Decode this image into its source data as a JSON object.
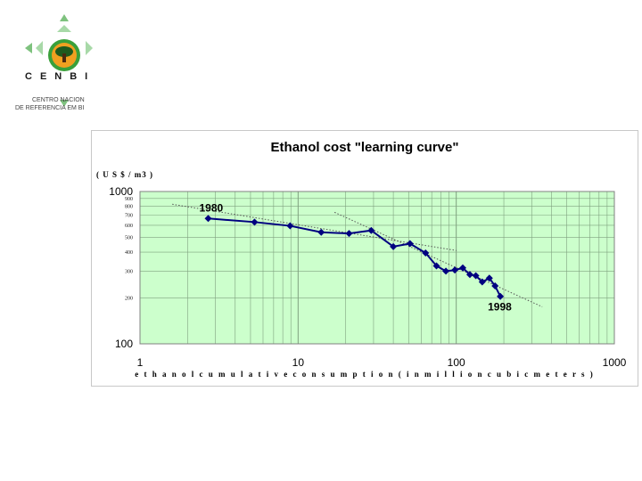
{
  "logo": {
    "letters": "CENBI",
    "line1": "CENTRO NACION",
    "line2": "DE REFERÊNCIA EM BI"
  },
  "colors": {
    "plot_bg": "#ccffcc",
    "grid": "#7fa07f",
    "series": "#000080",
    "trend": "#555555"
  },
  "chart_data": {
    "type": "line",
    "title": "Ethanol cost \"learning curve\"",
    "ylabel": "( U S $ / m3 )",
    "xlabel": "e t h a n o l   c u m u l a t i v e   c o n s u m p t i o n   ( i n   m i l l i o n   c u b i c   m e t e r s )",
    "x_scale": "log",
    "y_scale": "log",
    "xlim": [
      1,
      1000
    ],
    "ylim": [
      100,
      1000
    ],
    "x_ticks": [
      "1",
      "10",
      "100",
      "1000"
    ],
    "y_ticks_major": [
      "100",
      "1000"
    ],
    "y_ticks_minor": [
      "200",
      "300",
      "400",
      "500",
      "600",
      "700",
      "800",
      "900"
    ],
    "grid": true,
    "series": [
      {
        "points": [
          [
            2.7,
            665
          ],
          [
            5.3,
            630
          ],
          [
            8.9,
            595
          ],
          [
            14,
            540
          ],
          [
            21,
            530
          ],
          [
            29,
            555
          ],
          [
            40,
            435
          ],
          [
            51,
            455
          ],
          [
            64,
            395
          ],
          [
            75,
            325
          ],
          [
            86,
            300
          ],
          [
            98,
            305
          ],
          [
            110,
            315
          ],
          [
            122,
            285
          ],
          [
            133,
            280
          ],
          [
            146,
            255
          ],
          [
            162,
            270
          ],
          [
            176,
            240
          ],
          [
            190,
            205
          ]
        ]
      }
    ],
    "trendlines": [
      {
        "from": [
          1.6,
          825
        ],
        "to": [
          100,
          410
        ]
      },
      {
        "from": [
          17,
          730
        ],
        "to": [
          350,
          175
        ]
      }
    ],
    "annotations": [
      {
        "text": "1980",
        "at": [
          2.7,
          665
        ]
      },
      {
        "text": "1998",
        "at": [
          190,
          205
        ]
      }
    ]
  }
}
